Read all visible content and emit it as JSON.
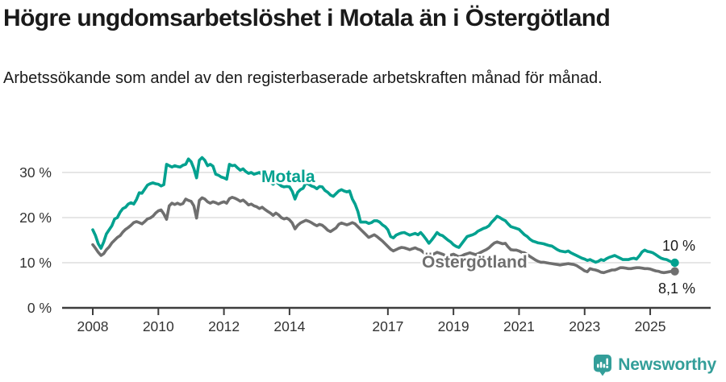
{
  "title": "Högre ungdomsarbetslöshet i Motala än i Östergötland",
  "subtitle": "Arbetssökande som andel av den registerbaserade arbetskraften månad för månad.",
  "footer": {
    "brand": "Newsworthy"
  },
  "colors": {
    "motala": "#00a18f",
    "ostergotland": "#6f6f6f",
    "brand_teal": "#339e99",
    "grid": "#d8d8d8",
    "axis": "#3d3d3d",
    "tick_text": "#333333"
  },
  "chart_data": {
    "type": "line",
    "title": "Högre ungdomsarbetslöshet i Motala än i Östergötland",
    "subtitle": "Arbetssökande som andel av den registerbaserade arbetskraften månad för månad.",
    "x_unit": "month",
    "x_start": "2008-01",
    "x_end": "2025-10",
    "x_tick_years": [
      2008,
      2010,
      2012,
      2014,
      2017,
      2019,
      2021,
      2023,
      2025
    ],
    "x_tick_labels": [
      "2008",
      "2010",
      "2012",
      "2014",
      "2017",
      "2019",
      "2021",
      "2023",
      "2025"
    ],
    "y_ticks": [
      0,
      10,
      20,
      30
    ],
    "y_tick_labels": [
      "0 %",
      "10 %",
      "20 %",
      "30 %"
    ],
    "ylim": [
      0,
      34
    ],
    "grid": "horizontal",
    "legend_position": "inline-labels",
    "series": [
      {
        "name": "Motala",
        "color_key": "motala",
        "end_label": "10 %",
        "values": [
          17.3,
          16.0,
          14.2,
          13.2,
          14.6,
          16.4,
          17.3,
          18.2,
          19.7,
          20.0,
          21.2,
          22.0,
          22.3,
          23.0,
          23.3,
          23.0,
          24.0,
          25.5,
          25.4,
          26.3,
          27.2,
          27.5,
          27.7,
          27.5,
          27.4,
          27.0,
          27.3,
          31.8,
          31.5,
          31.2,
          31.5,
          31.3,
          31.2,
          31.6,
          31.8,
          33.0,
          32.4,
          30.9,
          28.8,
          32.7,
          33.3,
          32.7,
          31.5,
          31.8,
          31.4,
          29.6,
          29.4,
          29.0,
          28.8,
          28.5,
          31.8,
          31.5,
          31.6,
          31.0,
          30.5,
          30.8,
          30.2,
          29.8,
          30.0,
          29.6,
          29.8,
          30.0,
          29.5,
          28.6,
          28.2,
          27.8,
          27.4,
          27.9,
          27.5,
          27.0,
          26.8,
          26.9,
          26.8,
          25.8,
          24.1,
          25.6,
          26.2,
          26.5,
          27.7,
          27.4,
          27.0,
          26.8,
          26.4,
          26.9,
          26.8,
          26.0,
          25.6,
          25.0,
          24.7,
          25.3,
          25.9,
          26.2,
          25.9,
          25.7,
          25.9,
          24.1,
          23.0,
          21.4,
          19.0,
          19.0,
          19.0,
          18.7,
          18.9,
          19.3,
          19.3,
          19.0,
          18.4,
          18.0,
          17.3,
          15.8,
          15.5,
          16.1,
          16.4,
          16.6,
          16.7,
          16.4,
          16.1,
          16.3,
          16.5,
          16.2,
          16.7,
          16.0,
          15.2,
          14.3,
          15.0,
          15.8,
          16.7,
          16.2,
          16.0,
          15.5,
          15.0,
          14.6,
          14.0,
          13.6,
          13.4,
          14.2,
          15.0,
          15.8,
          16.0,
          16.2,
          16.5,
          17.0,
          17.3,
          17.6,
          17.8,
          18.2,
          19.0,
          19.6,
          20.3,
          20.0,
          19.6,
          19.3,
          18.6,
          18.0,
          17.8,
          17.6,
          17.4,
          16.8,
          16.2,
          15.8,
          15.2,
          14.8,
          14.6,
          14.4,
          14.3,
          14.2,
          14.0,
          13.8,
          13.7,
          13.3,
          12.9,
          12.6,
          12.5,
          12.4,
          12.6,
          12.2,
          11.9,
          11.6,
          11.3,
          11.0,
          10.8,
          10.5,
          10.7,
          10.4,
          10.1,
          10.3,
          10.7,
          10.5,
          10.9,
          11.2,
          11.4,
          11.6,
          11.3,
          11.0,
          10.7,
          10.7,
          10.7,
          10.9,
          11.0,
          10.8,
          11.5,
          12.4,
          12.8,
          12.5,
          12.4,
          12.2,
          11.8,
          11.4,
          11.0,
          10.8,
          10.7,
          10.4,
          10.1,
          10.0
        ]
      },
      {
        "name": "Östergötland",
        "color_key": "ostergotland",
        "end_label": "8,1 %",
        "values": [
          14.0,
          13.2,
          12.3,
          11.6,
          12.0,
          12.9,
          13.5,
          14.4,
          15.0,
          15.6,
          16.0,
          16.8,
          17.4,
          17.8,
          18.3,
          18.9,
          19.1,
          18.9,
          18.6,
          19.1,
          19.7,
          19.9,
          20.3,
          21.0,
          21.5,
          21.7,
          20.8,
          19.6,
          22.6,
          23.2,
          22.9,
          23.2,
          22.9,
          23.1,
          24.1,
          23.8,
          23.6,
          22.6,
          19.9,
          23.8,
          24.4,
          24.1,
          23.5,
          23.2,
          23.5,
          23.3,
          23.0,
          23.3,
          23.5,
          23.2,
          24.2,
          24.5,
          24.3,
          24.0,
          23.6,
          23.9,
          23.4,
          22.8,
          23.0,
          22.6,
          22.4,
          22.0,
          22.3,
          21.8,
          21.4,
          21.0,
          20.5,
          21.0,
          20.6,
          20.0,
          19.7,
          19.9,
          19.5,
          18.8,
          17.5,
          18.3,
          18.8,
          19.1,
          19.4,
          19.2,
          18.9,
          18.5,
          18.2,
          18.5,
          18.3,
          17.8,
          17.2,
          16.9,
          17.3,
          17.7,
          18.5,
          18.8,
          18.6,
          18.4,
          18.6,
          18.9,
          18.6,
          18.0,
          17.4,
          16.8,
          16.2,
          15.6,
          15.9,
          16.2,
          15.8,
          15.3,
          14.8,
          14.2,
          13.6,
          13.0,
          12.6,
          12.9,
          13.2,
          13.4,
          13.3,
          13.1,
          12.9,
          13.1,
          13.3,
          13.0,
          12.8,
          12.3,
          11.8,
          11.4,
          11.7,
          12.0,
          12.3,
          12.1,
          11.9,
          11.6,
          11.4,
          11.7,
          11.9,
          11.6,
          11.3,
          11.5,
          11.8,
          12.0,
          12.2,
          12.0,
          11.8,
          12.0,
          12.3,
          12.6,
          12.9,
          13.3,
          13.9,
          14.4,
          14.6,
          14.4,
          14.2,
          14.3,
          13.5,
          12.9,
          12.8,
          12.8,
          12.6,
          12.3,
          12.2,
          11.8,
          11.4,
          11.0,
          10.6,
          10.3,
          10.1,
          10.1,
          10.0,
          9.9,
          9.8,
          9.7,
          9.6,
          9.5,
          9.6,
          9.7,
          9.8,
          9.7,
          9.6,
          9.4,
          9.0,
          8.6,
          8.2,
          8.0,
          8.7,
          8.5,
          8.4,
          8.2,
          7.9,
          7.8,
          8.0,
          8.2,
          8.4,
          8.4,
          8.6,
          8.9,
          8.9,
          8.8,
          8.7,
          8.7,
          8.8,
          8.9,
          8.9,
          8.8,
          8.7,
          8.7,
          8.6,
          8.4,
          8.2,
          8.1,
          7.9,
          7.8,
          7.9,
          8.0,
          8.1,
          8.1
        ]
      }
    ]
  }
}
